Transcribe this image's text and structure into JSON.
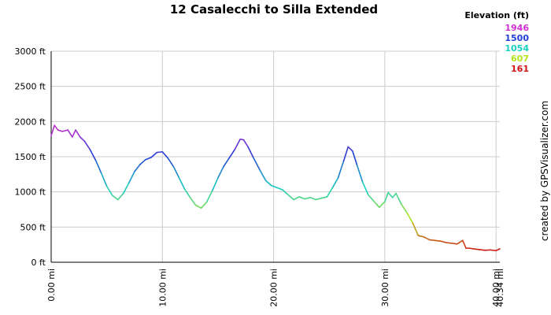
{
  "chart_data": {
    "type": "line",
    "title": "12 Casalecchi to Silla Extended",
    "xlabel": "",
    "ylabel": "",
    "x_unit": "mi",
    "y_unit": "ft",
    "xlim": [
      0,
      40.34
    ],
    "ylim": [
      0,
      3000
    ],
    "x_ticks": [
      "0.00 mi",
      "10.00 mi",
      "20.00 mi",
      "30.00 mi",
      "40.00 mi",
      "40.34 mi"
    ],
    "y_ticks": [
      "0 ft",
      "500 ft",
      "1000 ft",
      "1500 ft",
      "2000 ft",
      "2500 ft",
      "3000 ft"
    ],
    "grid": true,
    "series": [
      {
        "x": [
          0,
          0.3,
          0.6,
          1.0,
          1.5,
          1.9,
          2.2,
          2.6,
          3.0,
          3.5,
          4.0,
          4.5,
          5.0,
          5.5,
          6.0,
          6.5,
          7.0,
          7.5,
          8.0,
          8.5,
          9.0,
          9.5,
          10.0,
          10.5,
          11.0,
          11.5,
          12.0,
          12.5,
          13.0,
          13.5,
          14.0,
          14.5,
          15.0,
          15.5,
          16.0,
          16.5,
          17.0,
          17.3,
          17.7,
          18.2,
          18.8,
          19.3,
          19.8,
          20.3,
          20.8,
          21.3,
          21.8,
          22.3,
          22.8,
          23.3,
          23.8,
          24.3,
          24.8,
          25.3,
          25.8,
          26.3,
          26.7,
          27.1,
          27.5,
          28.0,
          28.5,
          29.0,
          29.5,
          30.0,
          30.3,
          30.7,
          31.0,
          31.5,
          32.0,
          32.5,
          33.0,
          33.5,
          34.0,
          34.5,
          35.0,
          35.5,
          36.0,
          36.5,
          37.0,
          37.3,
          37.6,
          38.0,
          38.5,
          39.0,
          39.5,
          40.0,
          40.34
        ],
        "y": [
          1800,
          1946,
          1880,
          1860,
          1880,
          1780,
          1880,
          1780,
          1720,
          1600,
          1450,
          1270,
          1080,
          950,
          890,
          980,
          1130,
          1290,
          1390,
          1460,
          1490,
          1560,
          1570,
          1480,
          1360,
          1200,
          1040,
          920,
          810,
          770,
          860,
          1020,
          1200,
          1360,
          1480,
          1600,
          1750,
          1740,
          1640,
          1480,
          1300,
          1160,
          1090,
          1060,
          1030,
          960,
          890,
          930,
          900,
          920,
          890,
          910,
          930,
          1060,
          1200,
          1440,
          1640,
          1580,
          1380,
          1140,
          960,
          870,
          780,
          860,
          990,
          920,
          980,
          820,
          700,
          560,
          380,
          360,
          320,
          310,
          300,
          280,
          270,
          260,
          310,
          200,
          200,
          190,
          180,
          170,
          175,
          165,
          190
        ]
      }
    ],
    "legend": {
      "title": "Elevation (ft)",
      "placement": "top-right",
      "entries": [
        {
          "label": "1946",
          "color": "#d02ed0"
        },
        {
          "label": "1500",
          "color": "#1f3fd6"
        },
        {
          "label": "1054",
          "color": "#19d0c0"
        },
        {
          "label": "607",
          "color": "#b6e41a"
        },
        {
          "label": "161",
          "color": "#d01414"
        }
      ]
    },
    "colors": {
      "gridline": "#cccccc",
      "axis": "#000000",
      "background": "#ffffff"
    }
  },
  "credit": "created by GPSVisualizer.com"
}
